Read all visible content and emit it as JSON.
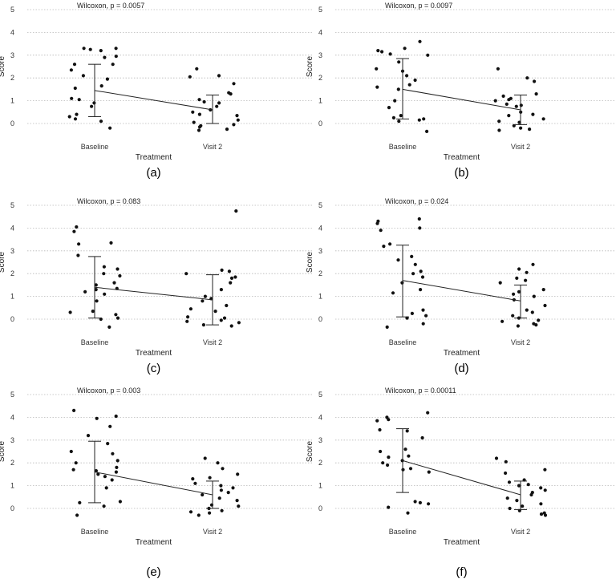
{
  "figure": {
    "panels": [
      "a",
      "b",
      "c",
      "d",
      "e",
      "f"
    ]
  },
  "chart_data": [
    {
      "type": "scatter",
      "panel_label": "(a)",
      "title": "Wilcoxon, p = 0.0057",
      "xlabel": "Treatment",
      "ylabel": "Score",
      "ylim": [
        -0.3,
        5
      ],
      "yticks": [
        0,
        1,
        2,
        3,
        4,
        5
      ],
      "categories": [
        "Baseline",
        "Visit 2"
      ],
      "grid": "horizontal-dotted",
      "mean": [
        1.45,
        0.6
      ],
      "error_low": [
        0.3,
        0.0
      ],
      "error_high": [
        2.6,
        1.25
      ],
      "points": [
        [
          1,
          3.25
        ],
        [
          1,
          3.3
        ],
        [
          1,
          3.3
        ],
        [
          1,
          3.2
        ],
        [
          1,
          2.95
        ],
        [
          1,
          2.9
        ],
        [
          1,
          2.6
        ],
        [
          1,
          2.6
        ],
        [
          1,
          2.35
        ],
        [
          1,
          2.1
        ],
        [
          1,
          1.95
        ],
        [
          1,
          1.65
        ],
        [
          1,
          1.55
        ],
        [
          1,
          1.1
        ],
        [
          1,
          1.05
        ],
        [
          1,
          0.9
        ],
        [
          1,
          0.75
        ],
        [
          1,
          0.4
        ],
        [
          1,
          0.3
        ],
        [
          1,
          0.2
        ],
        [
          1,
          0.1
        ],
        [
          1,
          -0.2
        ],
        [
          2,
          2.4
        ],
        [
          2,
          2.1
        ],
        [
          2,
          2.05
        ],
        [
          2,
          1.75
        ],
        [
          2,
          1.35
        ],
        [
          2,
          1.3
        ],
        [
          2,
          1.05
        ],
        [
          2,
          0.95
        ],
        [
          2,
          0.9
        ],
        [
          2,
          0.75
        ],
        [
          2,
          0.6
        ],
        [
          2,
          0.5
        ],
        [
          2,
          0.4
        ],
        [
          2,
          0.35
        ],
        [
          2,
          0.15
        ],
        [
          2,
          0.05
        ],
        [
          2,
          -0.05
        ],
        [
          2,
          -0.1
        ],
        [
          2,
          -0.15
        ],
        [
          2,
          -0.25
        ],
        [
          2,
          -0.3
        ]
      ]
    },
    {
      "type": "scatter",
      "panel_label": "(b)",
      "title": "Wilcoxon, p = 0.0097",
      "xlabel": "Treatment",
      "ylabel": "Score",
      "ylim": [
        -0.3,
        5
      ],
      "yticks": [
        0,
        1,
        2,
        3,
        4,
        5
      ],
      "categories": [
        "Baseline",
        "Visit 2"
      ],
      "grid": "horizontal-dotted",
      "mean": [
        1.5,
        0.6
      ],
      "error_low": [
        0.2,
        -0.05
      ],
      "error_high": [
        2.85,
        1.25
      ],
      "points": [
        [
          1,
          3.6
        ],
        [
          1,
          3.3
        ],
        [
          1,
          3.2
        ],
        [
          1,
          3.15
        ],
        [
          1,
          3.05
        ],
        [
          1,
          3.0
        ],
        [
          1,
          2.7
        ],
        [
          1,
          2.4
        ],
        [
          1,
          2.3
        ],
        [
          1,
          2.1
        ],
        [
          1,
          1.9
        ],
        [
          1,
          1.7
        ],
        [
          1,
          1.6
        ],
        [
          1,
          1.5
        ],
        [
          1,
          1.0
        ],
        [
          1,
          0.7
        ],
        [
          1,
          0.35
        ],
        [
          1,
          0.25
        ],
        [
          1,
          0.2
        ],
        [
          1,
          0.15
        ],
        [
          1,
          0.1
        ],
        [
          1,
          -0.35
        ],
        [
          2,
          2.4
        ],
        [
          2,
          2.0
        ],
        [
          2,
          1.85
        ],
        [
          2,
          1.3
        ],
        [
          2,
          1.2
        ],
        [
          2,
          1.1
        ],
        [
          2,
          1.05
        ],
        [
          2,
          1.0
        ],
        [
          2,
          0.85
        ],
        [
          2,
          0.8
        ],
        [
          2,
          0.75
        ],
        [
          2,
          0.5
        ],
        [
          2,
          0.4
        ],
        [
          2,
          0.35
        ],
        [
          2,
          0.2
        ],
        [
          2,
          0.1
        ],
        [
          2,
          0.05
        ],
        [
          2,
          -0.1
        ],
        [
          2,
          -0.2
        ],
        [
          2,
          -0.25
        ],
        [
          2,
          -0.3
        ]
      ]
    },
    {
      "type": "scatter",
      "panel_label": "(c)",
      "title": "Wilcoxon, p = 0.083",
      "xlabel": "Treatment",
      "ylabel": "Score",
      "ylim": [
        -0.3,
        5
      ],
      "yticks": [
        0,
        1,
        2,
        3,
        4,
        5
      ],
      "categories": [
        "Baseline",
        "Visit 2"
      ],
      "grid": "horizontal-dotted",
      "mean": [
        1.4,
        0.85
      ],
      "error_low": [
        0.05,
        -0.25
      ],
      "error_high": [
        2.75,
        1.95
      ],
      "points": [
        [
          1,
          4.05
        ],
        [
          1,
          3.85
        ],
        [
          1,
          3.35
        ],
        [
          1,
          3.3
        ],
        [
          1,
          2.8
        ],
        [
          1,
          2.3
        ],
        [
          1,
          2.2
        ],
        [
          1,
          2.0
        ],
        [
          1,
          1.9
        ],
        [
          1,
          1.6
        ],
        [
          1,
          1.5
        ],
        [
          1,
          1.35
        ],
        [
          1,
          1.3
        ],
        [
          1,
          1.2
        ],
        [
          1,
          1.1
        ],
        [
          1,
          0.8
        ],
        [
          1,
          0.35
        ],
        [
          1,
          0.3
        ],
        [
          1,
          0.2
        ],
        [
          1,
          0.05
        ],
        [
          1,
          0.0
        ],
        [
          1,
          -0.35
        ],
        [
          2,
          4.75
        ],
        [
          2,
          2.15
        ],
        [
          2,
          2.1
        ],
        [
          2,
          2.0
        ],
        [
          2,
          1.85
        ],
        [
          2,
          1.8
        ],
        [
          2,
          1.6
        ],
        [
          2,
          1.3
        ],
        [
          2,
          1.0
        ],
        [
          2,
          0.9
        ],
        [
          2,
          0.8
        ],
        [
          2,
          0.6
        ],
        [
          2,
          0.45
        ],
        [
          2,
          0.35
        ],
        [
          2,
          0.1
        ],
        [
          2,
          0.05
        ],
        [
          2,
          -0.05
        ],
        [
          2,
          -0.1
        ],
        [
          2,
          -0.15
        ],
        [
          2,
          -0.25
        ],
        [
          2,
          -0.3
        ]
      ]
    },
    {
      "type": "scatter",
      "panel_label": "(d)",
      "title": "Wilcoxon, p = 0.024",
      "xlabel": "Treatment",
      "ylabel": "Score",
      "ylim": [
        -0.3,
        5
      ],
      "yticks": [
        0,
        1,
        2,
        3,
        4,
        5
      ],
      "categories": [
        "Baseline",
        "Visit 2"
      ],
      "grid": "horizontal-dotted",
      "mean": [
        1.7,
        0.8
      ],
      "error_low": [
        0.1,
        0.05
      ],
      "error_high": [
        3.25,
        1.5
      ],
      "points": [
        [
          1,
          4.4
        ],
        [
          1,
          4.3
        ],
        [
          1,
          4.2
        ],
        [
          1,
          4.0
        ],
        [
          1,
          3.9
        ],
        [
          1,
          3.3
        ],
        [
          1,
          3.2
        ],
        [
          1,
          2.75
        ],
        [
          1,
          2.6
        ],
        [
          1,
          2.4
        ],
        [
          1,
          2.1
        ],
        [
          1,
          2.0
        ],
        [
          1,
          1.85
        ],
        [
          1,
          1.6
        ],
        [
          1,
          1.3
        ],
        [
          1,
          1.15
        ],
        [
          1,
          0.4
        ],
        [
          1,
          0.25
        ],
        [
          1,
          0.15
        ],
        [
          1,
          0.05
        ],
        [
          1,
          -0.2
        ],
        [
          1,
          -0.35
        ],
        [
          2,
          2.4
        ],
        [
          2,
          2.2
        ],
        [
          2,
          2.05
        ],
        [
          2,
          1.8
        ],
        [
          2,
          1.7
        ],
        [
          2,
          1.6
        ],
        [
          2,
          1.3
        ],
        [
          2,
          1.2
        ],
        [
          2,
          1.1
        ],
        [
          2,
          1.0
        ],
        [
          2,
          0.85
        ],
        [
          2,
          0.6
        ],
        [
          2,
          0.4
        ],
        [
          2,
          0.3
        ],
        [
          2,
          0.15
        ],
        [
          2,
          0.05
        ],
        [
          2,
          -0.05
        ],
        [
          2,
          -0.1
        ],
        [
          2,
          -0.2
        ],
        [
          2,
          -0.25
        ],
        [
          2,
          -0.3
        ]
      ]
    },
    {
      "type": "scatter",
      "panel_label": "(e)",
      "title": "Wilcoxon, p = 0.003",
      "xlabel": "Treatment",
      "ylabel": "Score",
      "ylim": [
        -0.3,
        5
      ],
      "yticks": [
        0,
        1,
        2,
        3,
        4,
        5
      ],
      "categories": [
        "Baseline",
        "Visit 2"
      ],
      "grid": "horizontal-dotted",
      "mean": [
        1.6,
        0.6
      ],
      "error_low": [
        0.25,
        0.0
      ],
      "error_high": [
        2.95,
        1.2
      ],
      "points": [
        [
          1,
          4.3
        ],
        [
          1,
          4.05
        ],
        [
          1,
          3.95
        ],
        [
          1,
          3.6
        ],
        [
          1,
          3.2
        ],
        [
          1,
          2.85
        ],
        [
          1,
          2.5
        ],
        [
          1,
          2.4
        ],
        [
          1,
          2.1
        ],
        [
          1,
          2.0
        ],
        [
          1,
          1.8
        ],
        [
          1,
          1.7
        ],
        [
          1,
          1.65
        ],
        [
          1,
          1.6
        ],
        [
          1,
          1.5
        ],
        [
          1,
          1.4
        ],
        [
          1,
          1.25
        ],
        [
          1,
          0.9
        ],
        [
          1,
          0.3
        ],
        [
          1,
          0.25
        ],
        [
          1,
          0.1
        ],
        [
          1,
          -0.3
        ],
        [
          2,
          2.2
        ],
        [
          2,
          2.0
        ],
        [
          2,
          1.75
        ],
        [
          2,
          1.5
        ],
        [
          2,
          1.35
        ],
        [
          2,
          1.3
        ],
        [
          2,
          1.1
        ],
        [
          2,
          1.0
        ],
        [
          2,
          0.9
        ],
        [
          2,
          0.8
        ],
        [
          2,
          0.7
        ],
        [
          2,
          0.6
        ],
        [
          2,
          0.45
        ],
        [
          2,
          0.35
        ],
        [
          2,
          0.15
        ],
        [
          2,
          0.1
        ],
        [
          2,
          0.0
        ],
        [
          2,
          -0.1
        ],
        [
          2,
          -0.15
        ],
        [
          2,
          -0.2
        ],
        [
          2,
          -0.3
        ]
      ]
    },
    {
      "type": "scatter",
      "panel_label": "(f)",
      "title": "Wilcoxon, p = 0.00011",
      "xlabel": "Treatment",
      "ylabel": "Score",
      "ylim": [
        -0.3,
        5
      ],
      "yticks": [
        0,
        1,
        2,
        3,
        4,
        5
      ],
      "categories": [
        "Baseline",
        "Visit 2"
      ],
      "grid": "horizontal-dotted",
      "mean": [
        2.1,
        0.6
      ],
      "error_low": [
        0.7,
        -0.05
      ],
      "error_high": [
        3.5,
        1.2
      ],
      "points": [
        [
          1,
          4.2
        ],
        [
          1,
          4.0
        ],
        [
          1,
          3.9
        ],
        [
          1,
          3.85
        ],
        [
          1,
          3.45
        ],
        [
          1,
          3.4
        ],
        [
          1,
          3.1
        ],
        [
          1,
          2.6
        ],
        [
          1,
          2.5
        ],
        [
          1,
          2.3
        ],
        [
          1,
          2.25
        ],
        [
          1,
          2.1
        ],
        [
          1,
          2.0
        ],
        [
          1,
          1.9
        ],
        [
          1,
          1.75
        ],
        [
          1,
          1.7
        ],
        [
          1,
          1.6
        ],
        [
          1,
          0.3
        ],
        [
          1,
          0.25
        ],
        [
          1,
          0.2
        ],
        [
          1,
          0.05
        ],
        [
          1,
          -0.2
        ],
        [
          2,
          2.2
        ],
        [
          2,
          2.05
        ],
        [
          2,
          1.7
        ],
        [
          2,
          1.55
        ],
        [
          2,
          1.25
        ],
        [
          2,
          1.15
        ],
        [
          2,
          1.05
        ],
        [
          2,
          1.0
        ],
        [
          2,
          0.9
        ],
        [
          2,
          0.8
        ],
        [
          2,
          0.7
        ],
        [
          2,
          0.6
        ],
        [
          2,
          0.45
        ],
        [
          2,
          0.35
        ],
        [
          2,
          0.2
        ],
        [
          2,
          0.1
        ],
        [
          2,
          0.0
        ],
        [
          2,
          -0.1
        ],
        [
          2,
          -0.2
        ],
        [
          2,
          -0.25
        ],
        [
          2,
          -0.3
        ]
      ]
    }
  ]
}
